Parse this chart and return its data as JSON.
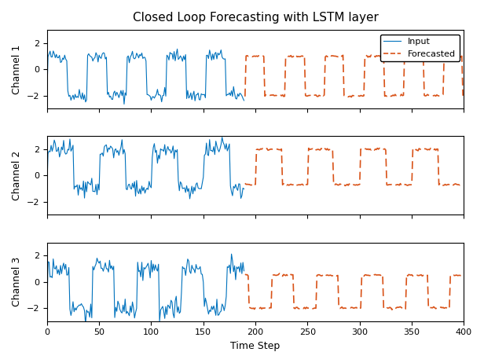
{
  "title": "Closed Loop Forecasting with LSTM layer",
  "xlabel": "Time Step",
  "channel_labels": [
    "Channel 1",
    "Channel 2",
    "Channel 3"
  ],
  "xlim": [
    0,
    400
  ],
  "ylim": [
    -3,
    3
  ],
  "yticks": [
    -2,
    0,
    2
  ],
  "xticks": [
    0,
    50,
    100,
    150,
    200,
    250,
    300,
    350,
    400
  ],
  "input_color": "#0072BD",
  "forecast_color": "#D95319",
  "input_end": 190,
  "forecast_start": 190,
  "legend_labels": [
    "Input",
    "Forecasted"
  ],
  "background_color": "#ffffff"
}
